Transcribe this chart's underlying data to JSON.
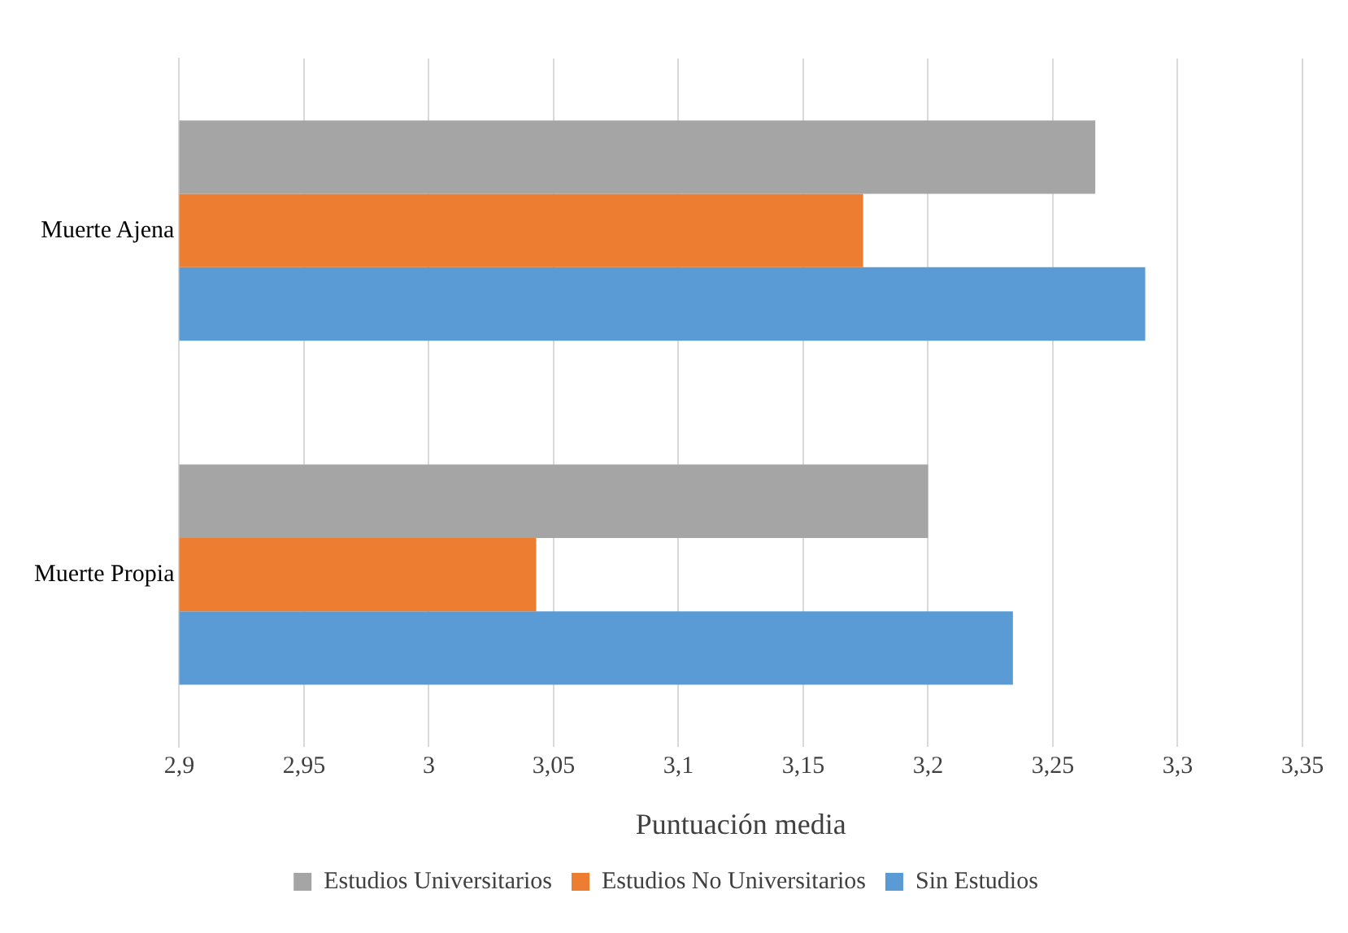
{
  "chart_data": {
    "type": "bar",
    "orientation": "horizontal",
    "xlabel": "Puntuación media",
    "categories": [
      "Muerte Ajena",
      "Muerte Propia"
    ],
    "series": [
      {
        "name": "Estudios Universitarios",
        "color": "#a5a5a5",
        "values": [
          3.267,
          3.2
        ]
      },
      {
        "name": "Estudios No Universitarios",
        "color": "#ed7d31",
        "values": [
          3.174,
          3.043
        ]
      },
      {
        "name": "Sin Estudios",
        "color": "#5b9bd5",
        "values": [
          3.287,
          3.234
        ]
      }
    ],
    "xlim": [
      2.9,
      3.35
    ],
    "xticks": [
      {
        "value": 2.9,
        "label": "2,9"
      },
      {
        "value": 2.95,
        "label": "2,95"
      },
      {
        "value": 3,
        "label": "3"
      },
      {
        "value": 3.05,
        "label": "3,05"
      },
      {
        "value": 3.1,
        "label": "3,1"
      },
      {
        "value": 3.15,
        "label": "3,15"
      },
      {
        "value": 3.2,
        "label": "3,2"
      },
      {
        "value": 3.25,
        "label": "3,25"
      },
      {
        "value": 3.3,
        "label": "3,3"
      },
      {
        "value": 3.35,
        "label": "3,35"
      }
    ],
    "grid": "x",
    "legend": "bottom"
  }
}
